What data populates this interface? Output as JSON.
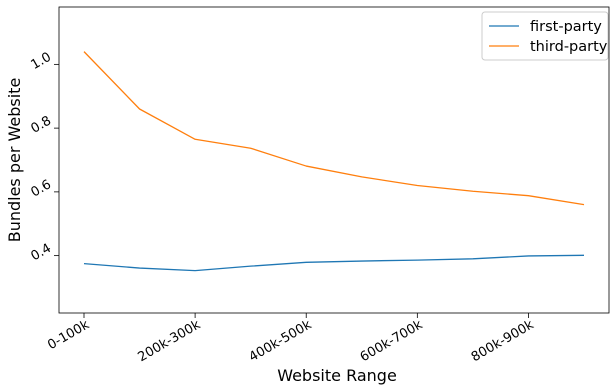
{
  "chart_data": {
    "type": "line",
    "xlabel": "Website Range",
    "ylabel": "Bundles per Website",
    "x_index": [
      0,
      1,
      2,
      3,
      4,
      5,
      6,
      7,
      8,
      9
    ],
    "tick_positions": [
      0,
      2,
      4,
      6,
      8
    ],
    "tick_labels": [
      "0-100k",
      "200k-300k",
      "400k-500k",
      "600k-700k",
      "800k-900k"
    ],
    "yticks": [
      0.4,
      0.6,
      0.8,
      1.0
    ],
    "ytick_labels": [
      "0.4",
      "0.6",
      "0.8",
      "1.0"
    ],
    "xlim": [
      -0.45,
      9.45
    ],
    "ylim": [
      0.22,
      1.18
    ],
    "grid": false,
    "legend_position": "top-right",
    "series": [
      {
        "name": "first-party",
        "color": "#1f77b4",
        "values": [
          0.375,
          0.361,
          0.353,
          0.367,
          0.379,
          0.383,
          0.386,
          0.39,
          0.399,
          0.401
        ]
      },
      {
        "name": "third-party",
        "color": "#ff7f0e",
        "values": [
          1.04,
          0.86,
          0.765,
          0.737,
          0.681,
          0.647,
          0.62,
          0.602,
          0.588,
          0.56
        ]
      }
    ]
  }
}
